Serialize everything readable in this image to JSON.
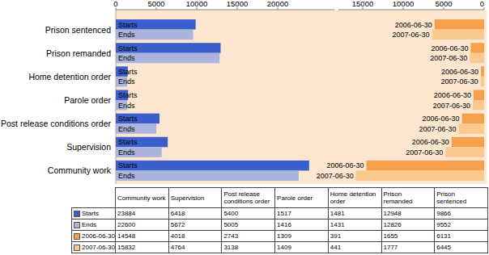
{
  "chart_data": [
    {
      "type": "bar",
      "orientation": "horizontal",
      "categories": [
        "Community work",
        "Supervision",
        "Post release conditions order",
        "Parole order",
        "Home detention order",
        "Prison remanded",
        "Prison sentenced"
      ],
      "series": [
        {
          "name": "Starts",
          "color": "#3a5fcd",
          "values": [
            23884,
            6418,
            5400,
            1517,
            1481,
            12948,
            9866
          ]
        },
        {
          "name": "Ends",
          "color": "#aab4dc",
          "values": [
            22600,
            5672,
            5005,
            1416,
            1431,
            12826,
            9552
          ]
        }
      ],
      "xlim": [
        0,
        27000
      ],
      "xticks": [
        0,
        5000,
        10000,
        15000,
        20000
      ],
      "grid": false
    },
    {
      "type": "bar",
      "orientation": "horizontal",
      "categories": [
        "Community work",
        "Supervision",
        "Post release conditions order",
        "Parole order",
        "Home detention order",
        "Prison remanded",
        "Prison sentenced"
      ],
      "series": [
        {
          "name": "2006-06-30",
          "color": "#f7a04b",
          "values": [
            14548,
            4018,
            2743,
            1309,
            391,
            1655,
            6131
          ]
        },
        {
          "name": "2007-06-30",
          "color": "#fbc98e",
          "values": [
            15832,
            4764,
            3138,
            1409,
            441,
            1777,
            6445
          ]
        }
      ],
      "xlim": [
        18000,
        0
      ],
      "xticks": [
        15000,
        10000,
        5000,
        0
      ],
      "grid": false,
      "tick_labels": "x"
    }
  ]
}
